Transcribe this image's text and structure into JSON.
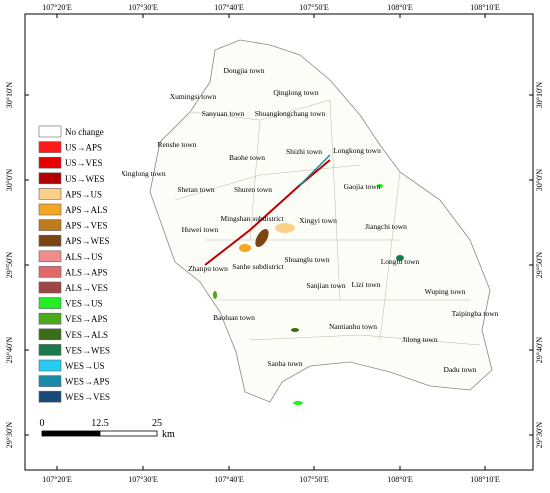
{
  "map": {
    "longitudes": [
      "107°20'E",
      "107°30'E",
      "107°40'E",
      "107°50'E",
      "108°0'E",
      "108°10'E"
    ],
    "latitudes": [
      "30°10'N",
      "30°0'N",
      "29°50'N",
      "29°40'N",
      "29°30'N"
    ],
    "legend": [
      {
        "label": "No change",
        "color": "#ffffff"
      },
      {
        "label": "US→APS",
        "color": "#ff1a1a"
      },
      {
        "label": "US→VES",
        "color": "#e60000"
      },
      {
        "label": "US→WES",
        "color": "#b00000"
      },
      {
        "label": "APS→US",
        "color": "#fcd08a"
      },
      {
        "label": "APS→ALS",
        "color": "#f5a623"
      },
      {
        "label": "APS→VES",
        "color": "#c07a1e"
      },
      {
        "label": "APS→WES",
        "color": "#7a4512"
      },
      {
        "label": "ALS→US",
        "color": "#f28c8c"
      },
      {
        "label": "ALS→APS",
        "color": "#e06a6a"
      },
      {
        "label": "ALS→VES",
        "color": "#a04545"
      },
      {
        "label": "VES→US",
        "color": "#22ee22"
      },
      {
        "label": "VES→APS",
        "color": "#4aaa1a"
      },
      {
        "label": "VES→ALS",
        "color": "#3a6e1a"
      },
      {
        "label": "VES→WES",
        "color": "#1a7a4a"
      },
      {
        "label": "WES→US",
        "color": "#22ccf2"
      },
      {
        "label": "WES→APS",
        "color": "#1a8aa8"
      },
      {
        "label": "WES→VES",
        "color": "#1a4a78"
      }
    ],
    "scale": {
      "ticks": [
        "0",
        "12.5",
        "25"
      ],
      "unit": "km"
    },
    "towns": [
      "Dongjia town",
      "Qinglong town",
      "Xumingsi town",
      "Sanyuan town",
      "Shuanglongchang town",
      "Renshe town",
      "Baohe town",
      "Shizhi town",
      "Longkong town",
      "Xinglong town",
      "Shetan town",
      "Shuren town",
      "Gaojia town",
      "Mingshan subdistrict",
      "Xingyi town",
      "Jiangchi town",
      "Huwei town",
      "Shuanglu town",
      "Zhanpu town",
      "Sanhe subdistrict",
      "Longtu town",
      "Sanjian town",
      "Lizi town",
      "Wuping town",
      "Baoluan town",
      "Taipingba town",
      "Nantianhu town",
      "Jilong town",
      "Sanba town",
      "Dadu town"
    ]
  }
}
